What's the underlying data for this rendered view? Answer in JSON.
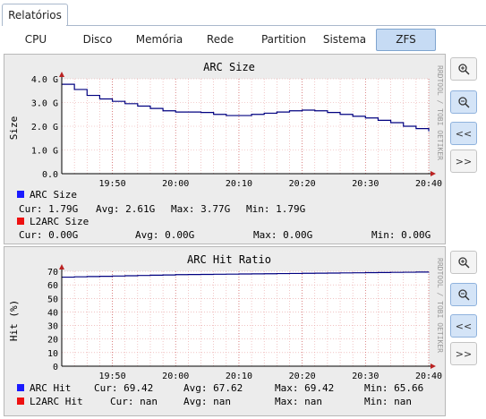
{
  "tabs": {
    "main": "Relatórios"
  },
  "subtabs": [
    "CPU",
    "Disco",
    "Memória",
    "Rede",
    "Partition",
    "Sistema",
    "ZFS"
  ],
  "active_subtab": "ZFS",
  "watermark": "RRDTOOL / TOBI OETIKER",
  "side_buttons": {
    "zoom_in": "zoom-in",
    "zoom_out": "zoom-out",
    "back": "<<",
    "forward": ">>"
  },
  "colors": {
    "grid": "#e8a0a0",
    "blue": "#1a1aff",
    "red": "#ee1111",
    "line": "#000080",
    "accent": "#c6dbf4"
  },
  "arc_size": {
    "title": "ARC Size",
    "ylabel": "Size",
    "yticks": [
      "0.0",
      "1.0 G",
      "2.0 G",
      "3.0 G",
      "4.0 G"
    ],
    "xticks": [
      "19:50",
      "20:00",
      "20:10",
      "20:20",
      "20:30",
      "20:40"
    ],
    "legend1": {
      "name": "ARC Size",
      "cur": "Cur: 1.79G",
      "avg": "Avg: 2.61G",
      "max": "Max: 3.77G",
      "min": "Min: 1.79G"
    },
    "legend2": {
      "name": "L2ARC Size",
      "cur": "Cur: 0.00G",
      "avg": "Avg: 0.00G",
      "max": "Max: 0.00G",
      "min": "Min: 0.00G"
    }
  },
  "arc_hit": {
    "title": "ARC Hit Ratio",
    "ylabel": "Hit (%)",
    "yticks": [
      "0",
      "10",
      "20",
      "30",
      "40",
      "50",
      "60",
      "70"
    ],
    "xticks": [
      "19:50",
      "20:00",
      "20:10",
      "20:20",
      "20:30",
      "20:40"
    ],
    "legend1": {
      "name": "ARC Hit",
      "cur": "Cur: 69.42",
      "avg": "Avg: 67.62",
      "max": "Max: 69.42",
      "min": "Min: 65.66"
    },
    "legend2": {
      "name": "L2ARC Hit",
      "cur": "Cur:  nan",
      "avg": "Avg:  nan",
      "max": "Max:  nan",
      "min": "Min:  nan"
    }
  },
  "chart_data": [
    {
      "type": "line",
      "title": "ARC Size",
      "ylabel": "Size",
      "ylim": [
        0,
        4
      ],
      "x": [
        "19:42",
        "19:44",
        "19:46",
        "19:48",
        "19:50",
        "19:52",
        "19:54",
        "19:56",
        "19:58",
        "20:00",
        "20:02",
        "20:04",
        "20:06",
        "20:08",
        "20:10",
        "20:12",
        "20:14",
        "20:16",
        "20:18",
        "20:20",
        "20:22",
        "20:24",
        "20:26",
        "20:28",
        "20:30",
        "20:32",
        "20:34",
        "20:36",
        "20:38",
        "20:40"
      ],
      "series": [
        {
          "name": "ARC Size",
          "values": [
            3.77,
            3.55,
            3.3,
            3.15,
            3.05,
            2.95,
            2.85,
            2.75,
            2.65,
            2.6,
            2.6,
            2.58,
            2.5,
            2.45,
            2.45,
            2.5,
            2.55,
            2.6,
            2.65,
            2.68,
            2.65,
            2.58,
            2.5,
            2.42,
            2.35,
            2.25,
            2.15,
            2.0,
            1.9,
            1.79
          ]
        },
        {
          "name": "L2ARC Size",
          "values": [
            0,
            0,
            0,
            0,
            0,
            0,
            0,
            0,
            0,
            0,
            0,
            0,
            0,
            0,
            0,
            0,
            0,
            0,
            0,
            0,
            0,
            0,
            0,
            0,
            0,
            0,
            0,
            0,
            0,
            0
          ]
        }
      ]
    },
    {
      "type": "line",
      "title": "ARC Hit Ratio",
      "ylabel": "Hit (%)",
      "ylim": [
        0,
        70
      ],
      "x": [
        "19:42",
        "19:44",
        "19:46",
        "19:48",
        "19:50",
        "19:52",
        "19:54",
        "19:56",
        "19:58",
        "20:00",
        "20:02",
        "20:04",
        "20:06",
        "20:08",
        "20:10",
        "20:12",
        "20:14",
        "20:16",
        "20:18",
        "20:20",
        "20:22",
        "20:24",
        "20:26",
        "20:28",
        "20:30",
        "20:32",
        "20:34",
        "20:36",
        "20:38",
        "20:40"
      ],
      "series": [
        {
          "name": "ARC Hit",
          "values": [
            65.66,
            65.9,
            66.1,
            66.3,
            66.5,
            66.7,
            66.9,
            67.1,
            67.3,
            67.5,
            67.6,
            67.7,
            67.8,
            67.9,
            68.0,
            68.1,
            68.2,
            68.3,
            68.4,
            68.5,
            68.6,
            68.7,
            68.8,
            68.9,
            69.0,
            69.1,
            69.2,
            69.3,
            69.4,
            69.42
          ]
        }
      ]
    }
  ]
}
